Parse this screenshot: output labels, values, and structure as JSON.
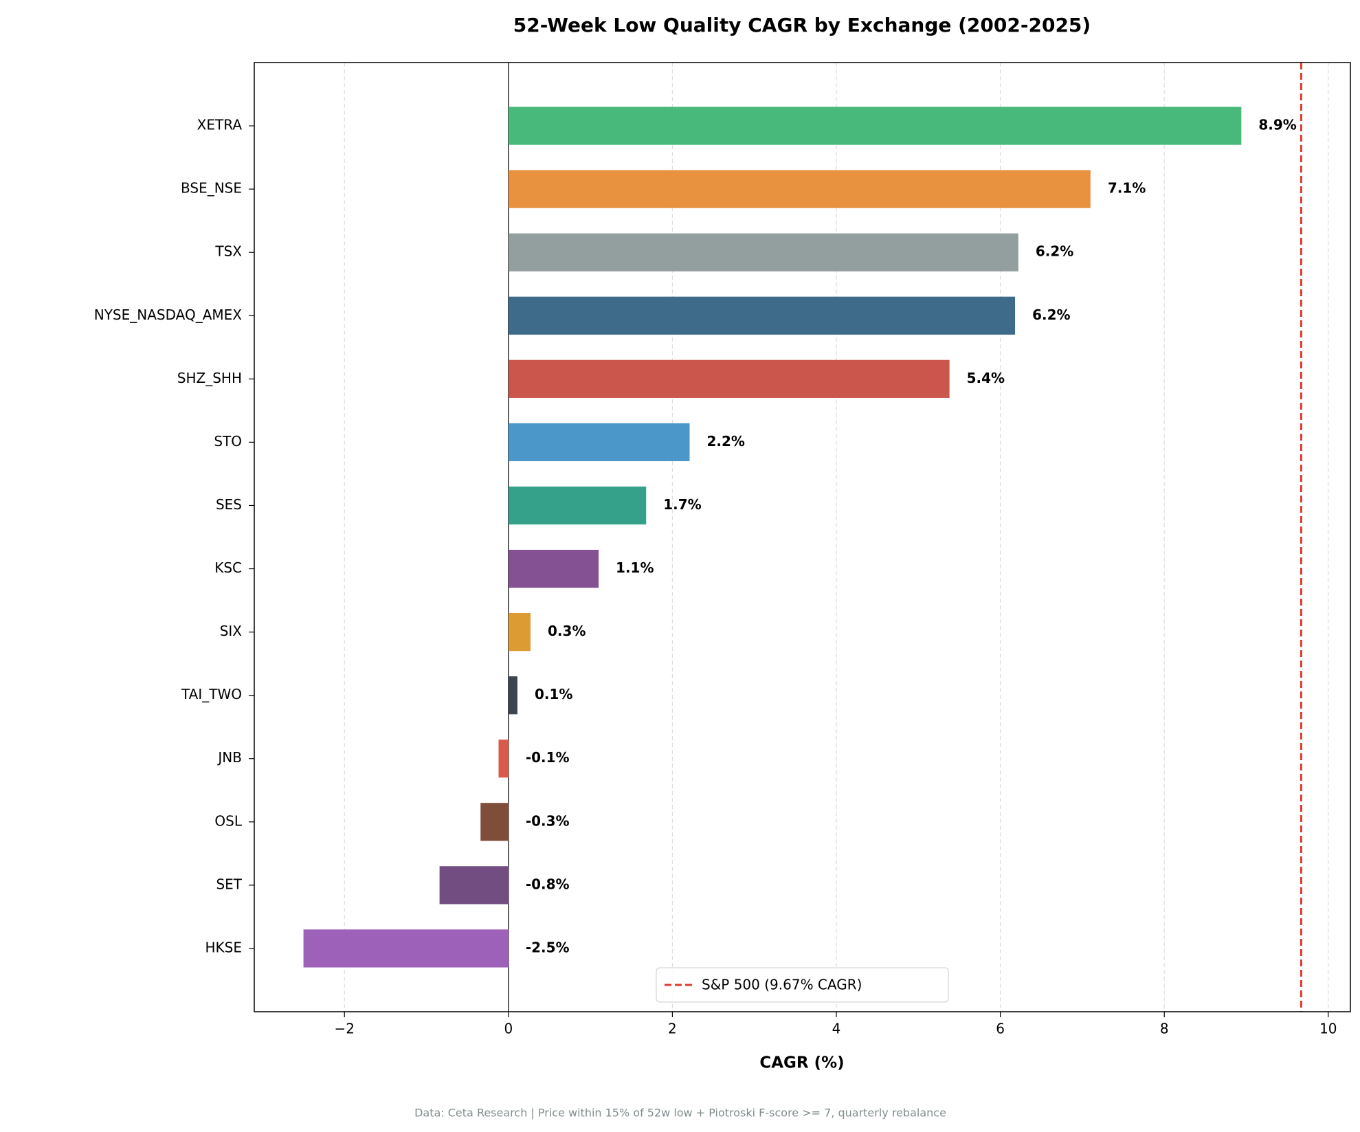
{
  "chart_data": {
    "type": "bar",
    "orientation": "horizontal",
    "title": "52-Week Low Quality CAGR by Exchange (2002-2025)",
    "x_label": "CAGR (%)",
    "footnote": "Data: Ceta Research | Price within 15% of 52w low + Piotroski F-score >= 7, quarterly rebalance",
    "categories": [
      "XETRA",
      "BSE_NSE",
      "TSX",
      "NYSE_NASDAQ_AMEX",
      "SHZ_SHH",
      "STO",
      "SES",
      "KSC",
      "SIX",
      "TAI_TWO",
      "JNB",
      "OSL",
      "SET",
      "HKSE"
    ],
    "values": [
      8.94,
      7.1,
      6.22,
      6.18,
      5.38,
      2.21,
      1.68,
      1.1,
      0.27,
      0.11,
      -0.12,
      -0.34,
      -0.84,
      -2.5
    ],
    "value_labels": [
      "8.9%",
      "7.1%",
      "6.2%",
      "6.2%",
      "5.4%",
      "2.2%",
      "1.7%",
      "1.1%",
      "0.3%",
      "0.1%",
      "-0.1%",
      "-0.3%",
      "-0.8%",
      "-2.5%"
    ],
    "colors": [
      "#48b97a",
      "#e8913f",
      "#939e9e",
      "#3d6b89",
      "#cb564b",
      "#4b97c9",
      "#36a18a",
      "#845292",
      "#dc9b33",
      "#3d4650",
      "#d95a4c",
      "#7f4e3b",
      "#724d82",
      "#9e61b9"
    ],
    "xlim": [
      -3.1,
      10.27
    ],
    "xticks": [
      {
        "value": -2,
        "label": "−2"
      },
      0,
      2,
      4,
      6,
      8,
      10
    ],
    "grid": true,
    "reference_line": {
      "value": 9.67,
      "label": "S&P 500 (9.67% CAGR)",
      "color": "#e0392b"
    },
    "legend_position": "lower center"
  }
}
